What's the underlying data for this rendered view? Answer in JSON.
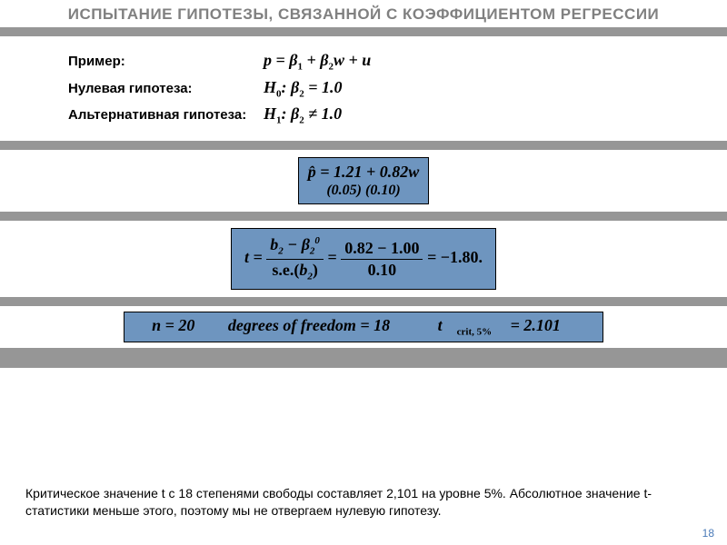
{
  "title": "ИСПЫТАНИЕ ГИПОТЕЗЫ, СВЯЗАННОЙ С КОЭФФИЦИЕНТОМ РЕГРЕССИИ",
  "hypotheses": {
    "example_label": "Пример:",
    "null_label": "Нулевая гипотеза:",
    "alt_label": "Альтернативная гипотеза:",
    "model_lhs": "p = ",
    "model_b1": "β",
    "model_sub1": "1",
    "model_plus1": " + ",
    "model_b2": "β",
    "model_sub2": "2",
    "model_rest": "w + u",
    "h0_prefix": "H",
    "h0_sub": "0",
    "h0_colon": ": ",
    "h0_beta": "β",
    "h0_bsub": "2",
    "h0_val": " = 1.0",
    "h1_prefix": "H",
    "h1_sub": "1",
    "h1_colon": ": ",
    "h1_beta": "β",
    "h1_bsub": "2",
    "h1_val": " ≠ 1.0"
  },
  "estimate": {
    "line1": "p̂ = 1.21 + 0.82w",
    "line2": "(0.05) (0.10)"
  },
  "tstat": {
    "t_eq": "t = ",
    "num1": "b",
    "num1sub": "2",
    "minus": " − ",
    "num2": "β",
    "num2sub": "2",
    "num2sup": "0",
    "den_se": "s.e.(",
    "den_b": "b",
    "den_bsub": "2",
    "den_close": ")",
    "eq2": " = ",
    "num_val": "0.82 − 1.00",
    "den_val": "0.10",
    "eq3": " = ",
    "result": "−1.80."
  },
  "stats": {
    "n": "n = 20",
    "dof": "degrees of freedom = 18",
    "tcrit_sym": "t",
    "tcrit_sub": "crit, 5%",
    "tcrit_val": " = 2.101"
  },
  "explanation": "Критическое значение t с 18 степенями свободы составляет 2,101 на уровне 5%. Абсолютное значение t-статистики меньше этого, поэтому мы не отвергаем нулевую гипотезу.",
  "page": "18",
  "colors": {
    "box_bg": "#6e95bf",
    "gray": "#969696",
    "title": "#808080",
    "page_num": "#4a7ab8"
  }
}
